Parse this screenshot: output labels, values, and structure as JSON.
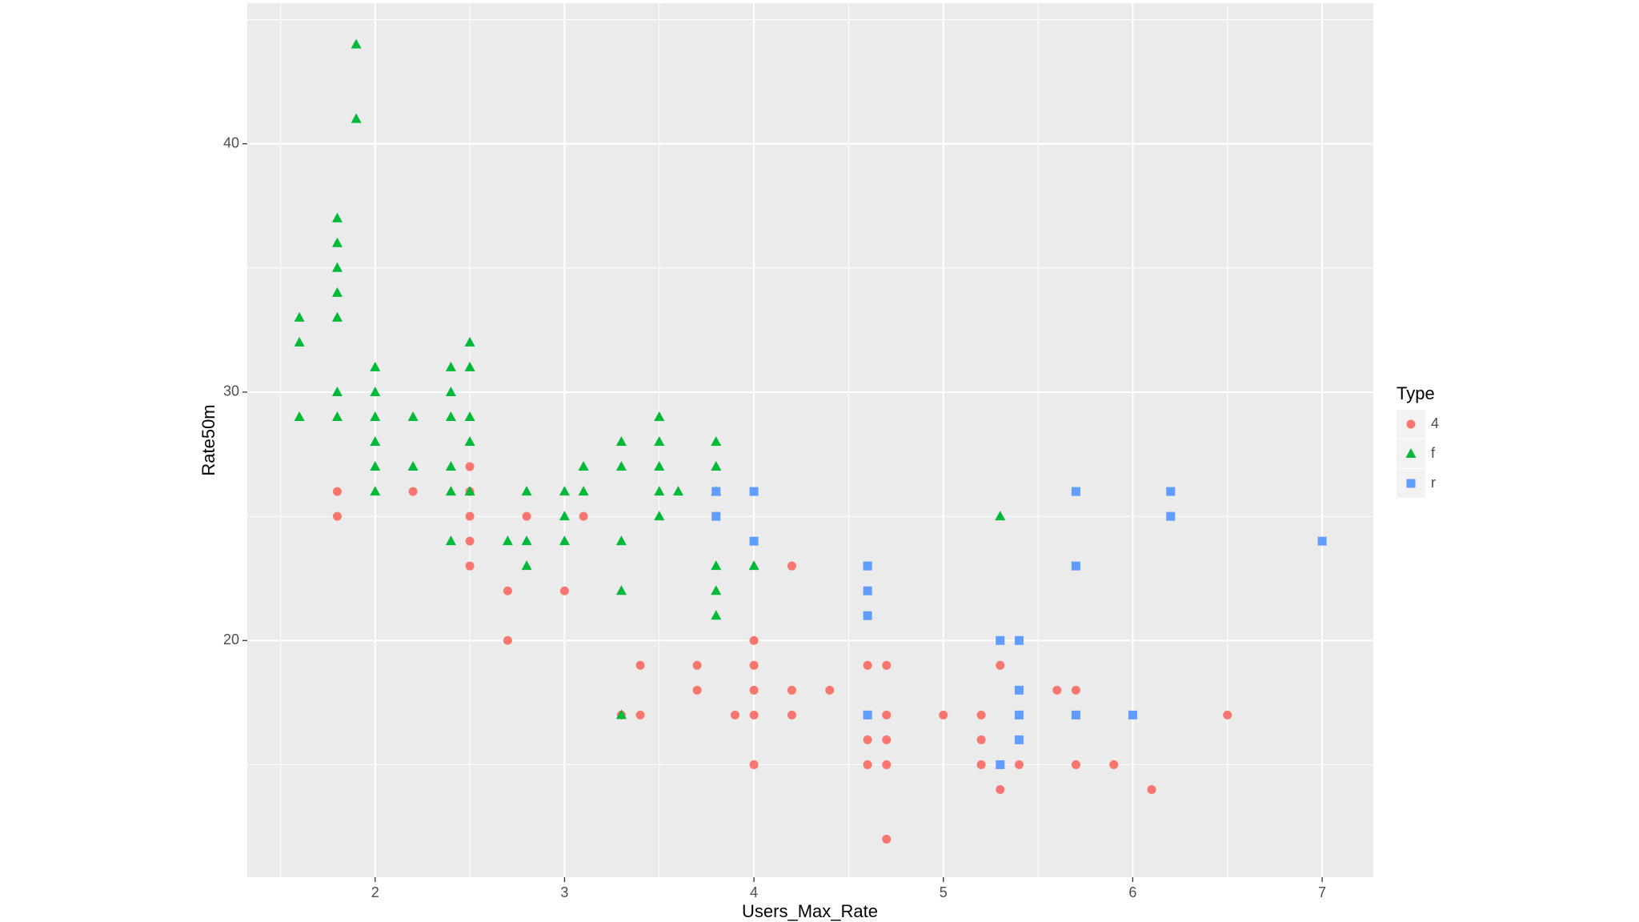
{
  "chart_data": {
    "type": "scatter",
    "xlabel": "Users_Max_Rate",
    "ylabel": "Rate50m",
    "xlim": [
      1.325,
      7.27
    ],
    "ylim": [
      10.47,
      45.66
    ],
    "xticks": [
      2,
      3,
      4,
      5,
      6,
      7
    ],
    "yticks": [
      20,
      30,
      40
    ],
    "grid": true,
    "legend_title": "Type",
    "legend": "right",
    "series": [
      {
        "name": "4",
        "color": "#F8766D",
        "shape": "circle",
        "x": [
          1.8,
          1.8,
          2.2,
          2.5,
          2.5,
          2.5,
          2.5,
          2.5,
          2.7,
          2.7,
          2.8,
          3,
          3.1,
          3.3,
          3.4,
          3.4,
          3.7,
          3.7,
          3.9,
          4,
          4,
          4,
          4,
          4,
          4.2,
          4.2,
          4.2,
          4.4,
          4.6,
          4.6,
          4.6,
          4.6,
          4.7,
          4.7,
          4.7,
          4.7,
          4.7,
          5,
          5.2,
          5.2,
          5.2,
          5.3,
          5.3,
          5.4,
          5.6,
          5.7,
          5.7,
          5.7,
          5.9,
          6.1,
          6.5
        ],
        "y": [
          26,
          25,
          26,
          27,
          26,
          25,
          24,
          23,
          22,
          20,
          25,
          22,
          25,
          17,
          19,
          17,
          19,
          18,
          17,
          20,
          19,
          18,
          17,
          15,
          23,
          18,
          17,
          18,
          19,
          17,
          16,
          15,
          19,
          17,
          16,
          15,
          12,
          17,
          17,
          16,
          15,
          19,
          14,
          15,
          18,
          18,
          17,
          15,
          15,
          14,
          17
        ]
      },
      {
        "name": "f",
        "color": "#00BA38",
        "shape": "triangle",
        "x": [
          1.6,
          1.6,
          1.6,
          1.9,
          1.9,
          1.8,
          1.8,
          1.8,
          1.8,
          1.8,
          1.8,
          1.8,
          2,
          2,
          2,
          2,
          2,
          2,
          2.2,
          2.2,
          2.4,
          2.4,
          2.4,
          2.4,
          2.4,
          2.4,
          2.5,
          2.5,
          2.5,
          2.5,
          2.5,
          2.7,
          2.8,
          2.8,
          2.8,
          3,
          3,
          3,
          3.1,
          3.1,
          3.3,
          3.3,
          3.3,
          3.3,
          3.3,
          3.5,
          3.5,
          3.5,
          3.5,
          3.5,
          3.6,
          3.8,
          3.8,
          3.8,
          3.8,
          3.8,
          3.8,
          4,
          5.3
        ],
        "y": [
          33,
          32,
          29,
          44,
          41,
          37,
          36,
          35,
          34,
          33,
          30,
          29,
          31,
          30,
          29,
          28,
          27,
          26,
          29,
          27,
          31,
          30,
          29,
          27,
          26,
          24,
          32,
          31,
          29,
          28,
          26,
          24,
          26,
          24,
          23,
          26,
          25,
          24,
          27,
          26,
          28,
          27,
          24,
          22,
          17,
          29,
          28,
          27,
          26,
          25,
          26,
          28,
          27,
          26,
          23,
          22,
          21,
          23,
          25
        ]
      },
      {
        "name": "r",
        "color": "#619CFF",
        "shape": "square",
        "x": [
          3.8,
          3.8,
          4,
          4,
          4.6,
          4.6,
          4.6,
          4.6,
          5.3,
          5.3,
          5.4,
          5.4,
          5.4,
          5.4,
          5.7,
          5.7,
          5.7,
          6,
          6.2,
          6.2,
          7
        ],
        "y": [
          26,
          25,
          26,
          24,
          23,
          22,
          21,
          17,
          20,
          15,
          20,
          18,
          17,
          16,
          26,
          23,
          17,
          17,
          26,
          25,
          24
        ]
      }
    ]
  }
}
